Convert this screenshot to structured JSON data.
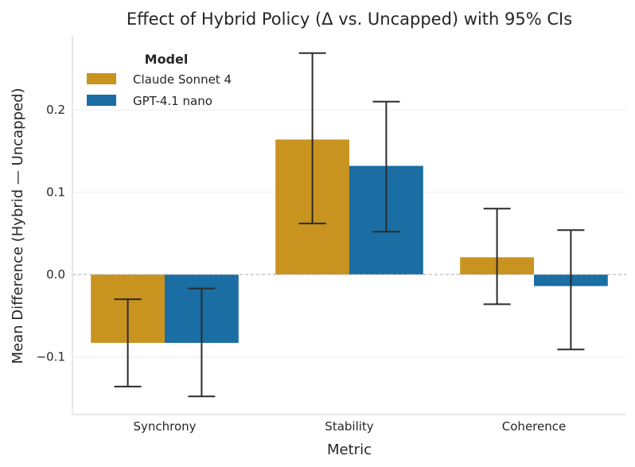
{
  "chart_data": {
    "type": "bar",
    "title": "Effect of Hybrid Policy (Δ vs. Uncapped) with 95% CIs",
    "xlabel": "Metric",
    "ylabel": "Mean Difference (Hybrid — Uncapped)",
    "categories": [
      "Synchrony",
      "Stability",
      "Coherence"
    ],
    "ylim": [
      -0.17,
      0.29
    ],
    "yticks": [
      -0.1,
      0.0,
      0.1,
      0.2
    ],
    "ytick_labels": [
      "−0.1",
      "0.0",
      "0.1",
      "0.2"
    ],
    "grid": true,
    "zero_line": "dashed",
    "legend": {
      "title": "Model",
      "position": "top-left"
    },
    "series": [
      {
        "name": "Claude Sonnet 4",
        "color": "#C8931F",
        "values": [
          -0.083,
          0.164,
          0.021
        ],
        "ci_low": [
          -0.136,
          0.062,
          -0.036
        ],
        "ci_high": [
          -0.03,
          0.269,
          0.08
        ]
      },
      {
        "name": "GPT-4.1 nano",
        "color": "#1A6EA3",
        "values": [
          -0.083,
          0.132,
          -0.014
        ],
        "ci_low": [
          -0.148,
          0.052,
          -0.091
        ],
        "ci_high": [
          -0.017,
          0.21,
          0.054
        ]
      }
    ]
  }
}
